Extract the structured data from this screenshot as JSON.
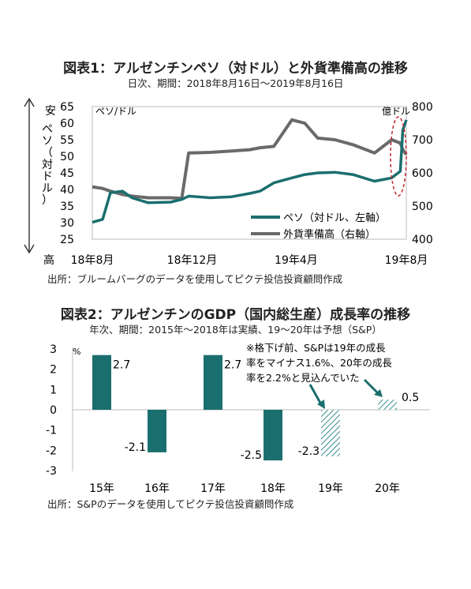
{
  "chart1": {
    "title": "図表1：アルゼンチンペソ（対ドル）と外貨準備高の推移",
    "subtitle": "日次、期間：2018年8月16日～2019年8月16日",
    "source": "出所：ブルームバーグのデータを使用してピクテ投信投資顧問作成",
    "left_unit": "ペソ/ドル",
    "right_unit": "億ドル",
    "y_side_top": "安",
    "y_side_bottom": "高",
    "y_side_label": "ペソ（対ドル）",
    "left_ticks": [
      "65",
      "60",
      "55",
      "50",
      "45",
      "40",
      "35",
      "30",
      "25"
    ],
    "right_ticks": [
      "800",
      "700",
      "600",
      "500",
      "400"
    ],
    "x_ticks": [
      "18年8月",
      "18年12月",
      "19年4月",
      "19年8月"
    ],
    "legend": [
      "ペソ（対ドル、左軸）",
      "外貨準備高（右軸）"
    ],
    "colors": {
      "peso": "#1b6e6e",
      "reserves": "#6a6a6a",
      "highlight": "#c0282d"
    }
  },
  "chart2": {
    "title": "図表2：アルゼンチンのGDP（国内総生産）成長率の推移",
    "subtitle": "年次、期間：2015年～2018年は実績、19～20年は予想（S&P）",
    "source": "出所：S&Pのデータを使用してピクテ投信投資顧問作成",
    "unit": "%",
    "y_ticks": [
      "3",
      "2",
      "1",
      "0",
      "-1",
      "-2",
      "-3"
    ],
    "note_lines": [
      "※格下げ前、S&Pは19年の成長",
      "率をマイナス1.6%、20年の成長",
      "率を2.2%と見込んでいた"
    ],
    "value_labels": [
      "2.7",
      "-2.1",
      "2.7",
      "-2.5",
      "-2.3",
      "0.5"
    ],
    "colors": {
      "bar": "#1b6e6e",
      "forecast": "#3a8c8c"
    }
  },
  "chart_data": [
    {
      "type": "line",
      "title": "図表1：アルゼンチンペソ（対ドル）と外貨準備高の推移",
      "x": [
        "2018-08-16",
        "2018-08-28",
        "2018-09-06",
        "2018-09-20",
        "2018-10-01",
        "2018-10-20",
        "2018-11-15",
        "2018-11-28",
        "2018-12-06",
        "2018-12-31",
        "2019-01-25",
        "2019-02-15",
        "2019-02-27",
        "2019-03-15",
        "2019-04-05",
        "2019-04-20",
        "2019-05-05",
        "2019-05-25",
        "2019-06-15",
        "2019-07-10",
        "2019-07-30",
        "2019-08-09",
        "2019-08-12",
        "2019-08-16"
      ],
      "xlabel": "",
      "series": [
        {
          "name": "ペソ（対ドル、左軸）",
          "axis": "left",
          "values": [
            30.1,
            31.0,
            39.0,
            39.5,
            37.5,
            36.0,
            36.2,
            37.0,
            38.0,
            37.5,
            37.8,
            38.8,
            39.5,
            42.0,
            43.5,
            44.5,
            45.0,
            45.2,
            44.5,
            42.5,
            43.5,
            45.5,
            58.0,
            61.0
          ],
          "ylim": [
            25,
            65
          ]
        },
        {
          "name": "外貨準備高（右軸）",
          "axis": "right",
          "values": [
            558,
            553,
            545,
            535,
            530,
            525,
            525,
            523,
            660,
            662,
            666,
            670,
            676,
            680,
            760,
            750,
            705,
            700,
            685,
            660,
            700,
            690,
            670,
            655
          ],
          "ylim": [
            400,
            800
          ]
        }
      ]
    },
    {
      "type": "bar",
      "title": "図表2：アルゼンチンのGDP（国内総生産）成長率の推移",
      "categories": [
        "15年",
        "16年",
        "17年",
        "18年",
        "19年",
        "20年"
      ],
      "values": [
        2.7,
        -2.1,
        2.7,
        -2.5,
        -2.3,
        0.5
      ],
      "forecast": [
        false,
        false,
        false,
        false,
        true,
        true
      ],
      "ylabel": "%",
      "ylim": [
        -3,
        3
      ]
    }
  ]
}
